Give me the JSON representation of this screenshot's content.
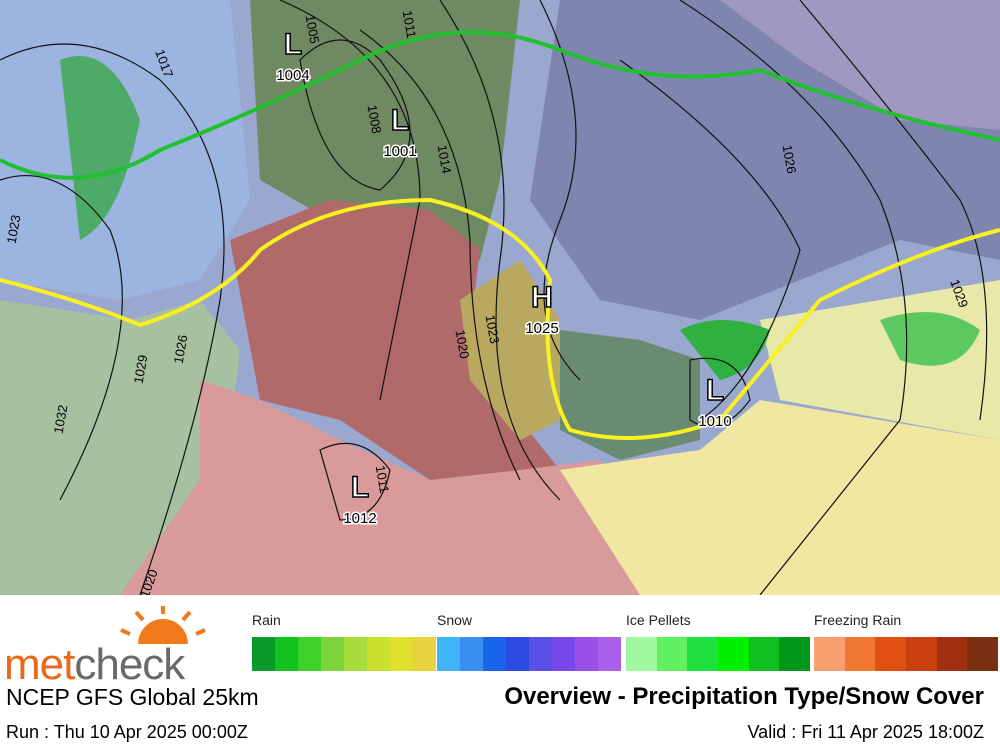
{
  "logo": {
    "met": "met",
    "check": "check"
  },
  "model": "NCEP GFS Global 25km",
  "title": "Overview - Precipitation Type/Snow Cover",
  "run": "Run : Thu 10 Apr 2025 00:00Z",
  "valid": "Valid : Fri 11 Apr 2025 18:00Z",
  "legend": [
    {
      "label": "Rain",
      "colors": [
        "#0a9a2a",
        "#12c21e",
        "#3cd22a",
        "#7ed43a",
        "#a8dc3c",
        "#c8e030",
        "#e0e030",
        "#e8d240"
      ]
    },
    {
      "label": "Snow",
      "colors": [
        "#40b4f8",
        "#3a90f0",
        "#1a64e8",
        "#2a4ae0",
        "#5a50e8",
        "#7848e8",
        "#9850e8",
        "#a860e8"
      ]
    },
    {
      "label": "Ice Pellets",
      "colors": [
        "#a0f8a0",
        "#60f060",
        "#20e040",
        "#00f000",
        "#10c020",
        "#009818"
      ]
    },
    {
      "label": "Freezing Rain",
      "colors": [
        "#f8a070",
        "#f07830",
        "#e05010",
        "#c84010",
        "#a03010",
        "#783010"
      ]
    }
  ],
  "pressure_centers": [
    {
      "symbol": "L",
      "value": 1004
    },
    {
      "symbol": "L",
      "value": 1001
    },
    {
      "symbol": "H",
      "value": 1025
    },
    {
      "symbol": "L",
      "value": 1010
    },
    {
      "symbol": "L",
      "value": 1012
    }
  ],
  "isobar_labels": [
    1017,
    1005,
    1011,
    1008,
    1014,
    1020,
    1023,
    1023,
    1026,
    1029,
    1032,
    1026,
    1029,
    1020,
    1011
  ]
}
